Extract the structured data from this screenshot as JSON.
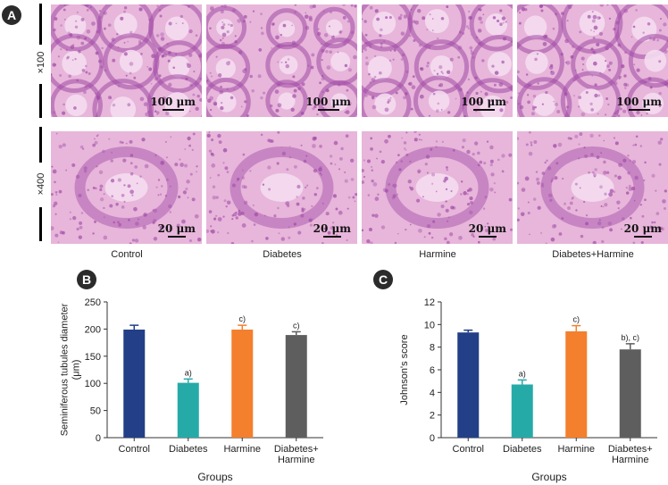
{
  "panel_a": {
    "badge": "A",
    "row_labels": [
      "×100",
      "×400"
    ],
    "columns": [
      "Control",
      "Diabetes",
      "Harmine",
      "Diabetes+Harmine"
    ],
    "scale_bars": [
      "100 μm",
      "20 μm"
    ]
  },
  "colors": {
    "tissue_bg": "#e7b6da",
    "tissue_dark": "#a04aa6",
    "bar_control": "#223f87",
    "bar_diabetes": "#26aaa8",
    "bar_harmine": "#f47f2c",
    "bar_combo": "#5e5e5e"
  },
  "chart_data": [
    {
      "badge": "B",
      "type": "bar",
      "categories": [
        "Control",
        "Diabetes",
        "Harmine",
        "Diabetes+\nHarmine"
      ],
      "values": [
        199,
        101,
        199,
        189
      ],
      "errors": [
        8,
        7,
        8,
        6
      ],
      "annotations": [
        "",
        "a)",
        "c)",
        "c)"
      ],
      "ylabel": "Seminiferous tubules diameter\n(μm)",
      "xlabel": "Groups",
      "ylim": [
        0,
        250
      ],
      "yticks": [
        0,
        50,
        100,
        150,
        200,
        250
      ]
    },
    {
      "badge": "C",
      "type": "bar",
      "categories": [
        "Control",
        "Diabetes",
        "Harmine",
        "Diabetes+\nHarmine"
      ],
      "values": [
        9.3,
        4.7,
        9.4,
        7.8
      ],
      "errors": [
        0.2,
        0.4,
        0.5,
        0.5
      ],
      "annotations": [
        "",
        "a)",
        "c)",
        "b), c)"
      ],
      "ylabel": "Johnson's score",
      "xlabel": "Groups",
      "ylim": [
        0,
        12
      ],
      "yticks": [
        0,
        2,
        4,
        6,
        8,
        10,
        12
      ]
    }
  ]
}
